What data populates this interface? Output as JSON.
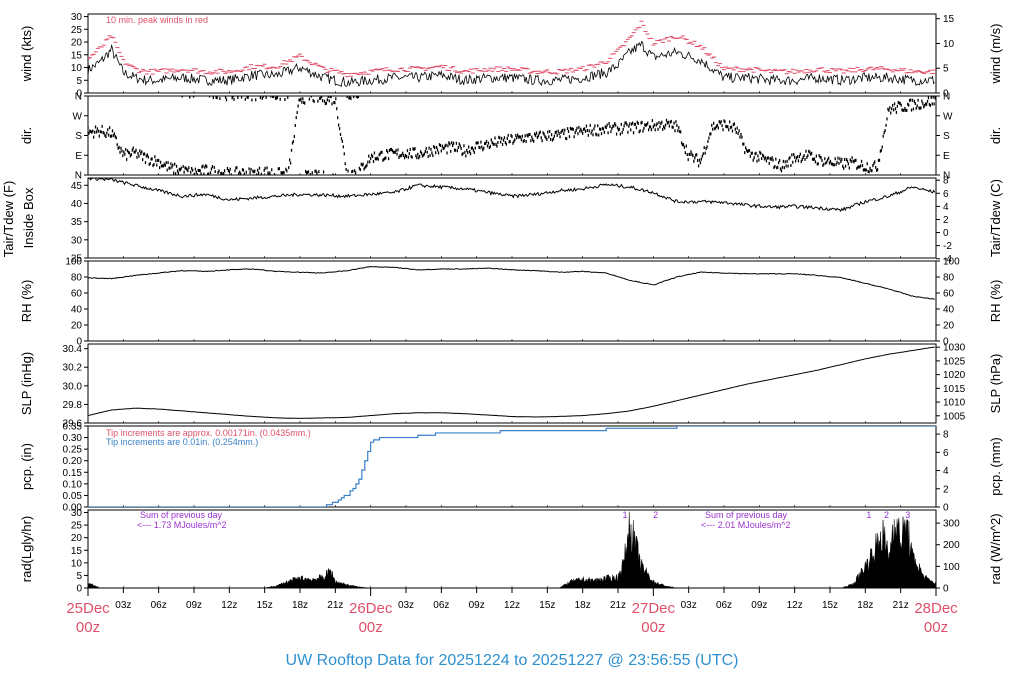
{
  "title": "UW Rooftop Data for 20251224  to  20251227 @ 23:56:55  (UTC)",
  "colors": {
    "red": "#e0506a",
    "blue": "#3a80c8",
    "purple": "#9933cc",
    "title": "#2f90d0"
  },
  "time_axis": {
    "hours_total": 72,
    "minor_ticks": [
      "03z",
      "06z",
      "09z",
      "12z",
      "15z",
      "18z",
      "21z",
      "03z",
      "06z",
      "09z",
      "12z",
      "15z",
      "18z",
      "21z",
      "03z",
      "06z",
      "09z",
      "12z",
      "15z",
      "18z",
      "21z"
    ],
    "major_ticks": [
      {
        "date": "25Dec",
        "time": "00z"
      },
      {
        "date": "26Dec",
        "time": "00z"
      },
      {
        "date": "27Dec",
        "time": "00z"
      },
      {
        "date": "28Dec",
        "time": "00z"
      }
    ]
  },
  "panels": [
    {
      "id": "wind",
      "left_label": "wind (kts)",
      "right_label": "wind (m/s)",
      "left_ticks": [
        "0",
        "5",
        "10",
        "15",
        "20",
        "25",
        "30"
      ],
      "right_ticks": [
        "0",
        "5",
        "10",
        "15"
      ],
      "annotations": [
        "10 min. peak winds in red"
      ]
    },
    {
      "id": "dir",
      "left_label": "dir.",
      "right_label": "dir.",
      "left_ticks": [
        "N",
        "E",
        "S",
        "W",
        "N"
      ],
      "right_ticks": [
        "N",
        "E",
        "S",
        "W",
        "N"
      ]
    },
    {
      "id": "temp",
      "left_label": "Tair/Tdew (F)",
      "left_label2": "Inside Box",
      "right_label": "Tair/Tdew (C)",
      "left_ticks": [
        "25",
        "30",
        "35",
        "40",
        "45"
      ],
      "right_ticks": [
        "-4",
        "-2",
        "0",
        "2",
        "4",
        "6",
        "8"
      ]
    },
    {
      "id": "rh",
      "left_label": "RH (%)",
      "right_label": "RH (%)",
      "left_ticks": [
        "0",
        "20",
        "40",
        "60",
        "80",
        "100"
      ],
      "right_ticks": [
        "0",
        "20",
        "40",
        "60",
        "80",
        "100"
      ]
    },
    {
      "id": "slp",
      "left_label": "SLP (inHg)",
      "right_label": "SLP (hPa)",
      "left_ticks": [
        "29.6",
        "29.8",
        "30.0",
        "30.2",
        "30.4"
      ],
      "right_ticks": [
        "1005",
        "1010",
        "1015",
        "1020",
        "1025",
        "1030"
      ]
    },
    {
      "id": "pcp",
      "left_label": "pcp. (in)",
      "right_label": "pcp. (mm)",
      "left_ticks": [
        "0.00",
        "0.05",
        "0.10",
        "0.15",
        "0.20",
        "0.25",
        "0.30",
        "0.35"
      ],
      "right_ticks": [
        "0",
        "2",
        "4",
        "6",
        "8"
      ],
      "annotations": [
        "Tip increments are approx. 0.00171in. (0.0435mm.)",
        "Tip increments are 0.01in. (0.254mm.)"
      ]
    },
    {
      "id": "rad",
      "left_label": "rad(Lgly/hr)",
      "right_label": "rad (W/m^2)",
      "left_ticks": [
        "0",
        "5",
        "10",
        "15",
        "20",
        "25",
        "30"
      ],
      "right_ticks": [
        "0",
        "100",
        "200",
        "300"
      ],
      "annotations": [
        "Sum of previous day",
        "<--- 1.73 MJoules/m^2",
        "Sum of previous day",
        "<--- 2.01 MJoules/m^2"
      ],
      "markers": [
        "1",
        "2",
        "1",
        "2",
        "3"
      ]
    }
  ],
  "chart_data": [
    {
      "type": "line",
      "id": "wind",
      "ylabel": "wind (kts)",
      "ylim": [
        0,
        31
      ],
      "x": [
        0,
        1,
        2,
        3,
        4,
        5,
        6,
        8,
        10,
        12,
        14,
        16,
        18,
        20,
        22,
        24,
        26,
        28,
        30,
        32,
        34,
        36,
        38,
        40,
        42,
        44,
        45,
        46,
        47,
        48,
        50,
        52,
        54,
        56,
        58,
        60,
        62,
        64,
        66,
        68,
        70,
        72
      ],
      "values": [
        9,
        12,
        17,
        8,
        6,
        5,
        5,
        6,
        5,
        5,
        7,
        7,
        10,
        6,
        4,
        5,
        6,
        6,
        7,
        5,
        6,
        6,
        5,
        5,
        6,
        8,
        11,
        16,
        19,
        14,
        16,
        13,
        6,
        6,
        5,
        5,
        6,
        5,
        6,
        6,
        5,
        5
      ],
      "peak_values": [
        13,
        17,
        22,
        12,
        9,
        8,
        8,
        9,
        8,
        8,
        10,
        10,
        14,
        9,
        7,
        8,
        9,
        9,
        10,
        8,
        9,
        9,
        8,
        8,
        9,
        12,
        16,
        21,
        27,
        19,
        22,
        18,
        9,
        9,
        8,
        8,
        9,
        8,
        9,
        9,
        8,
        8
      ]
    },
    {
      "type": "scatter",
      "id": "dir",
      "ylabel": "dir.",
      "ylim": [
        0,
        360
      ],
      "x": [
        0,
        1,
        2,
        3,
        4,
        5,
        6,
        7,
        8,
        9,
        10,
        11,
        12,
        13,
        14,
        15,
        16,
        17,
        18,
        19,
        20,
        21,
        22,
        23,
        24,
        25,
        26,
        27,
        28,
        29,
        30,
        31,
        32,
        33,
        34,
        35,
        36,
        37,
        38,
        39,
        40,
        41,
        42,
        43,
        44,
        45,
        46,
        47,
        48,
        49,
        50,
        51,
        52,
        53,
        54,
        55,
        56,
        57,
        58,
        59,
        60,
        61,
        62,
        63,
        64,
        65,
        66,
        67,
        68,
        69,
        70,
        71,
        72
      ],
      "values": [
        195,
        200,
        190,
        90,
        100,
        75,
        60,
        30,
        20,
        10,
        20,
        15,
        5,
        10,
        5,
        15,
        5,
        5,
        350,
        355,
        350,
        345,
        10,
        15,
        80,
        90,
        95,
        100,
        95,
        110,
        120,
        125,
        110,
        130,
        140,
        150,
        160,
        170,
        170,
        180,
        180,
        190,
        200,
        205,
        210,
        210,
        215,
        220,
        225,
        230,
        220,
        90,
        60,
        220,
        230,
        210,
        100,
        80,
        60,
        40,
        80,
        90,
        70,
        60,
        50,
        55,
        40,
        35,
        300,
        310,
        320,
        330,
        340
      ]
    },
    {
      "type": "line",
      "id": "temp",
      "ylabel": "Tair/Tdew (F)",
      "ylim": [
        25,
        47
      ],
      "x": [
        0,
        2,
        4,
        6,
        8,
        10,
        12,
        14,
        16,
        18,
        20,
        22,
        24,
        26,
        28,
        30,
        32,
        34,
        36,
        38,
        40,
        42,
        44,
        46,
        48,
        50,
        52,
        54,
        56,
        58,
        60,
        62,
        64,
        66,
        68,
        70,
        72
      ],
      "values": [
        47,
        46.5,
        45,
        43.5,
        42,
        42.5,
        41,
        41.5,
        42,
        42.5,
        42.3,
        42,
        42.5,
        43,
        45,
        44.5,
        44,
        43,
        42,
        42.5,
        43.5,
        44,
        45.2,
        44.5,
        43,
        40.5,
        40.5,
        40.3,
        39.5,
        39,
        39.2,
        38.8,
        38.2,
        40.5,
        42,
        44.5,
        43
      ]
    },
    {
      "type": "line",
      "id": "rh",
      "ylabel": "RH (%)",
      "ylim": [
        0,
        100
      ],
      "x": [
        0,
        2,
        4,
        6,
        8,
        10,
        12,
        14,
        16,
        18,
        20,
        22,
        24,
        26,
        28,
        30,
        32,
        34,
        36,
        38,
        40,
        42,
        44,
        46,
        48,
        50,
        52,
        54,
        56,
        58,
        60,
        62,
        64,
        66,
        68,
        70,
        72
      ],
      "values": [
        79,
        78,
        82,
        85,
        88,
        87,
        89,
        90,
        87,
        86,
        85,
        88,
        93,
        92,
        89,
        90,
        90,
        91,
        89,
        88,
        86,
        87,
        85,
        76,
        70,
        80,
        86,
        85,
        84,
        84,
        84,
        82,
        79,
        72,
        65,
        56,
        52
      ]
    },
    {
      "type": "line",
      "id": "slp",
      "ylabel": "SLP (inHg)",
      "ylim": [
        29.6,
        30.45
      ],
      "x": [
        0,
        2,
        4,
        6,
        8,
        10,
        12,
        14,
        16,
        18,
        20,
        22,
        24,
        26,
        28,
        30,
        32,
        34,
        36,
        38,
        40,
        42,
        44,
        46,
        48,
        50,
        52,
        54,
        56,
        58,
        60,
        62,
        64,
        66,
        68,
        70,
        72
      ],
      "values": [
        29.68,
        29.74,
        29.76,
        29.75,
        29.73,
        29.71,
        29.69,
        29.67,
        29.655,
        29.65,
        29.655,
        29.66,
        29.68,
        29.7,
        29.71,
        29.71,
        29.7,
        29.685,
        29.67,
        29.665,
        29.67,
        29.68,
        29.7,
        29.73,
        29.78,
        29.84,
        29.9,
        29.96,
        30.02,
        30.07,
        30.12,
        30.17,
        30.23,
        30.29,
        30.34,
        30.38,
        30.42
      ]
    },
    {
      "type": "line",
      "id": "pcp",
      "ylabel": "pcp. (in)",
      "ylim": [
        0,
        0.35
      ],
      "x": [
        0,
        20,
        20.5,
        21,
        21.5,
        22,
        22.5,
        23,
        23.5,
        24,
        25,
        27,
        29,
        30,
        34,
        36,
        40,
        42,
        46,
        50,
        60,
        72
      ],
      "values": [
        0,
        0,
        0.01,
        0.02,
        0.04,
        0.05,
        0.08,
        0.12,
        0.2,
        0.28,
        0.3,
        0.3,
        0.31,
        0.32,
        0.32,
        0.33,
        0.33,
        0.33,
        0.34,
        0.345,
        0.345,
        0.345
      ]
    },
    {
      "type": "area",
      "id": "rad",
      "ylabel": "rad(Lgly/hr)",
      "ylim": [
        0,
        31
      ],
      "x": [
        0,
        0.4,
        0.8,
        1,
        15,
        16,
        17,
        18,
        19,
        20,
        20.6,
        21,
        22,
        23,
        24,
        40,
        41,
        42,
        43,
        44,
        45,
        45.5,
        46,
        46.5,
        47,
        48,
        49,
        50,
        64,
        65,
        66,
        67,
        67.5,
        68,
        68.5,
        69,
        69.5,
        70,
        70.5,
        71,
        72
      ],
      "values": [
        2,
        1.5,
        0.5,
        0,
        0,
        1,
        3,
        4.5,
        4,
        5,
        8,
        3,
        1.5,
        0.5,
        0,
        0,
        3,
        4,
        3.5,
        4.5,
        5,
        12,
        29,
        20,
        10,
        3,
        1,
        0,
        0,
        2,
        10,
        20,
        25,
        14,
        33,
        22,
        30,
        14,
        10,
        5,
        2
      ]
    }
  ]
}
